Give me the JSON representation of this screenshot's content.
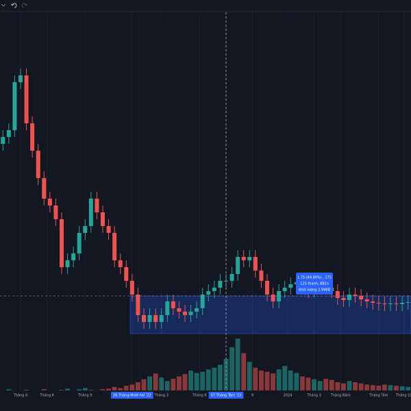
{
  "chart_data": {
    "type": "candlestick",
    "up_color": "#26a69a",
    "down_color": "#ef5350",
    "ylim": [
      0,
      100
    ],
    "volume_ylim": [
      0,
      100
    ],
    "open": [
      58,
      60,
      62,
      76,
      78,
      64,
      56,
      48,
      42,
      40,
      36,
      22,
      24,
      26,
      32,
      34,
      42,
      38,
      34,
      32,
      24,
      22,
      18,
      14,
      8,
      6,
      8,
      6,
      8,
      12,
      10,
      9,
      8,
      9,
      10,
      14,
      15,
      16,
      18,
      18,
      20,
      25,
      24,
      25,
      21,
      18,
      14,
      12,
      15,
      16,
      17,
      17.6,
      17,
      15,
      16,
      16.4,
      16,
      15,
      13,
      12.4,
      14,
      13.6,
      12.6,
      12,
      11.6,
      11.4,
      11.2,
      11.4,
      11.2,
      11.6
    ],
    "high": [
      62,
      64,
      78,
      80,
      80,
      66,
      58,
      50,
      44,
      42,
      38,
      26,
      28,
      34,
      36,
      44,
      44,
      40,
      36,
      34,
      26,
      24,
      20,
      16,
      10,
      10,
      10,
      10,
      14,
      14,
      12,
      11,
      11,
      12,
      16,
      17,
      18,
      20,
      20,
      22,
      27,
      27,
      27,
      27,
      23,
      20,
      16,
      17,
      18,
      19,
      19.6,
      19.6,
      19,
      18,
      18.4,
      18.4,
      18,
      17,
      15,
      16,
      16,
      15.6,
      14.6,
      14,
      13.6,
      13.4,
      13.4,
      13.4,
      13.6,
      13.8
    ],
    "low": [
      56,
      58,
      60,
      74,
      62,
      54,
      46,
      40,
      38,
      34,
      20,
      20,
      22,
      24,
      30,
      32,
      36,
      32,
      30,
      22,
      20,
      16,
      12,
      6,
      4,
      4,
      4,
      4,
      6,
      8,
      7,
      6,
      6,
      7,
      8,
      12,
      13,
      14,
      16,
      16,
      18,
      22,
      22,
      19,
      16,
      12,
      10,
      10,
      13,
      14,
      15,
      15,
      13,
      13,
      14,
      14,
      13,
      11,
      10.4,
      10.4,
      11.6,
      10.6,
      10,
      9.6,
      9.4,
      9.2,
      9.2,
      9.2,
      9.2,
      9.6
    ],
    "close": [
      60,
      62,
      76,
      78,
      64,
      56,
      48,
      42,
      40,
      36,
      22,
      24,
      26,
      32,
      34,
      42,
      38,
      34,
      32,
      24,
      22,
      18,
      14,
      8,
      6,
      8,
      6,
      8,
      12,
      10,
      9,
      8,
      9,
      10,
      14,
      15,
      16,
      18,
      18,
      20,
      25,
      24,
      25,
      21,
      18,
      14,
      12,
      15,
      16,
      17,
      17.6,
      17,
      15,
      16,
      16.4,
      16,
      15,
      13,
      12.4,
      14,
      13.6,
      12.6,
      12,
      11.6,
      11.4,
      11.2,
      11.4,
      11.2,
      11.6,
      11.8
    ],
    "volume": [
      5,
      8,
      6,
      4,
      7,
      5,
      6,
      8,
      5,
      6,
      7,
      9,
      6,
      8,
      10,
      7,
      6,
      8,
      9,
      12,
      10,
      14,
      16,
      20,
      25,
      30,
      35,
      28,
      22,
      26,
      30,
      34,
      40,
      36,
      38,
      42,
      45,
      50,
      60,
      80,
      95,
      70,
      55,
      45,
      40,
      38,
      35,
      42,
      48,
      40,
      36,
      30,
      28,
      25,
      22,
      26,
      24,
      20,
      18,
      22,
      20,
      18,
      16,
      15,
      14,
      16,
      15,
      14,
      13,
      12
    ],
    "xticks": [
      {
        "value": 3,
        "label": "Tháng 4"
      },
      {
        "value": 7.5,
        "label": "Tháng 6"
      },
      {
        "value": 14,
        "label": "Tháng 9"
      },
      {
        "value": 22,
        "label": "26 Tháng Mười hai '22",
        "highlight": true
      },
      {
        "value": 27,
        "label": "Tháng 3"
      },
      {
        "value": 33.5,
        "label": "Tháng 6"
      },
      {
        "value": 38,
        "label": "07 Tháng Tám '23",
        "highlight": true
      },
      {
        "value": 42.5,
        "label": "9"
      },
      {
        "value": 48.5,
        "label": "2024"
      },
      {
        "value": 53,
        "label": "Tháng 3"
      },
      {
        "value": 57.5,
        "label": "Tháng Năm"
      },
      {
        "value": 64,
        "label": "Tháng Tám"
      },
      {
        "value": 68.3,
        "label": "Tháng 10"
      }
    ],
    "tooltip": [
      "1.75 (44.80%) , 175",
      "125 thanh, 882n",
      "Khối lượng 2.998B"
    ]
  }
}
